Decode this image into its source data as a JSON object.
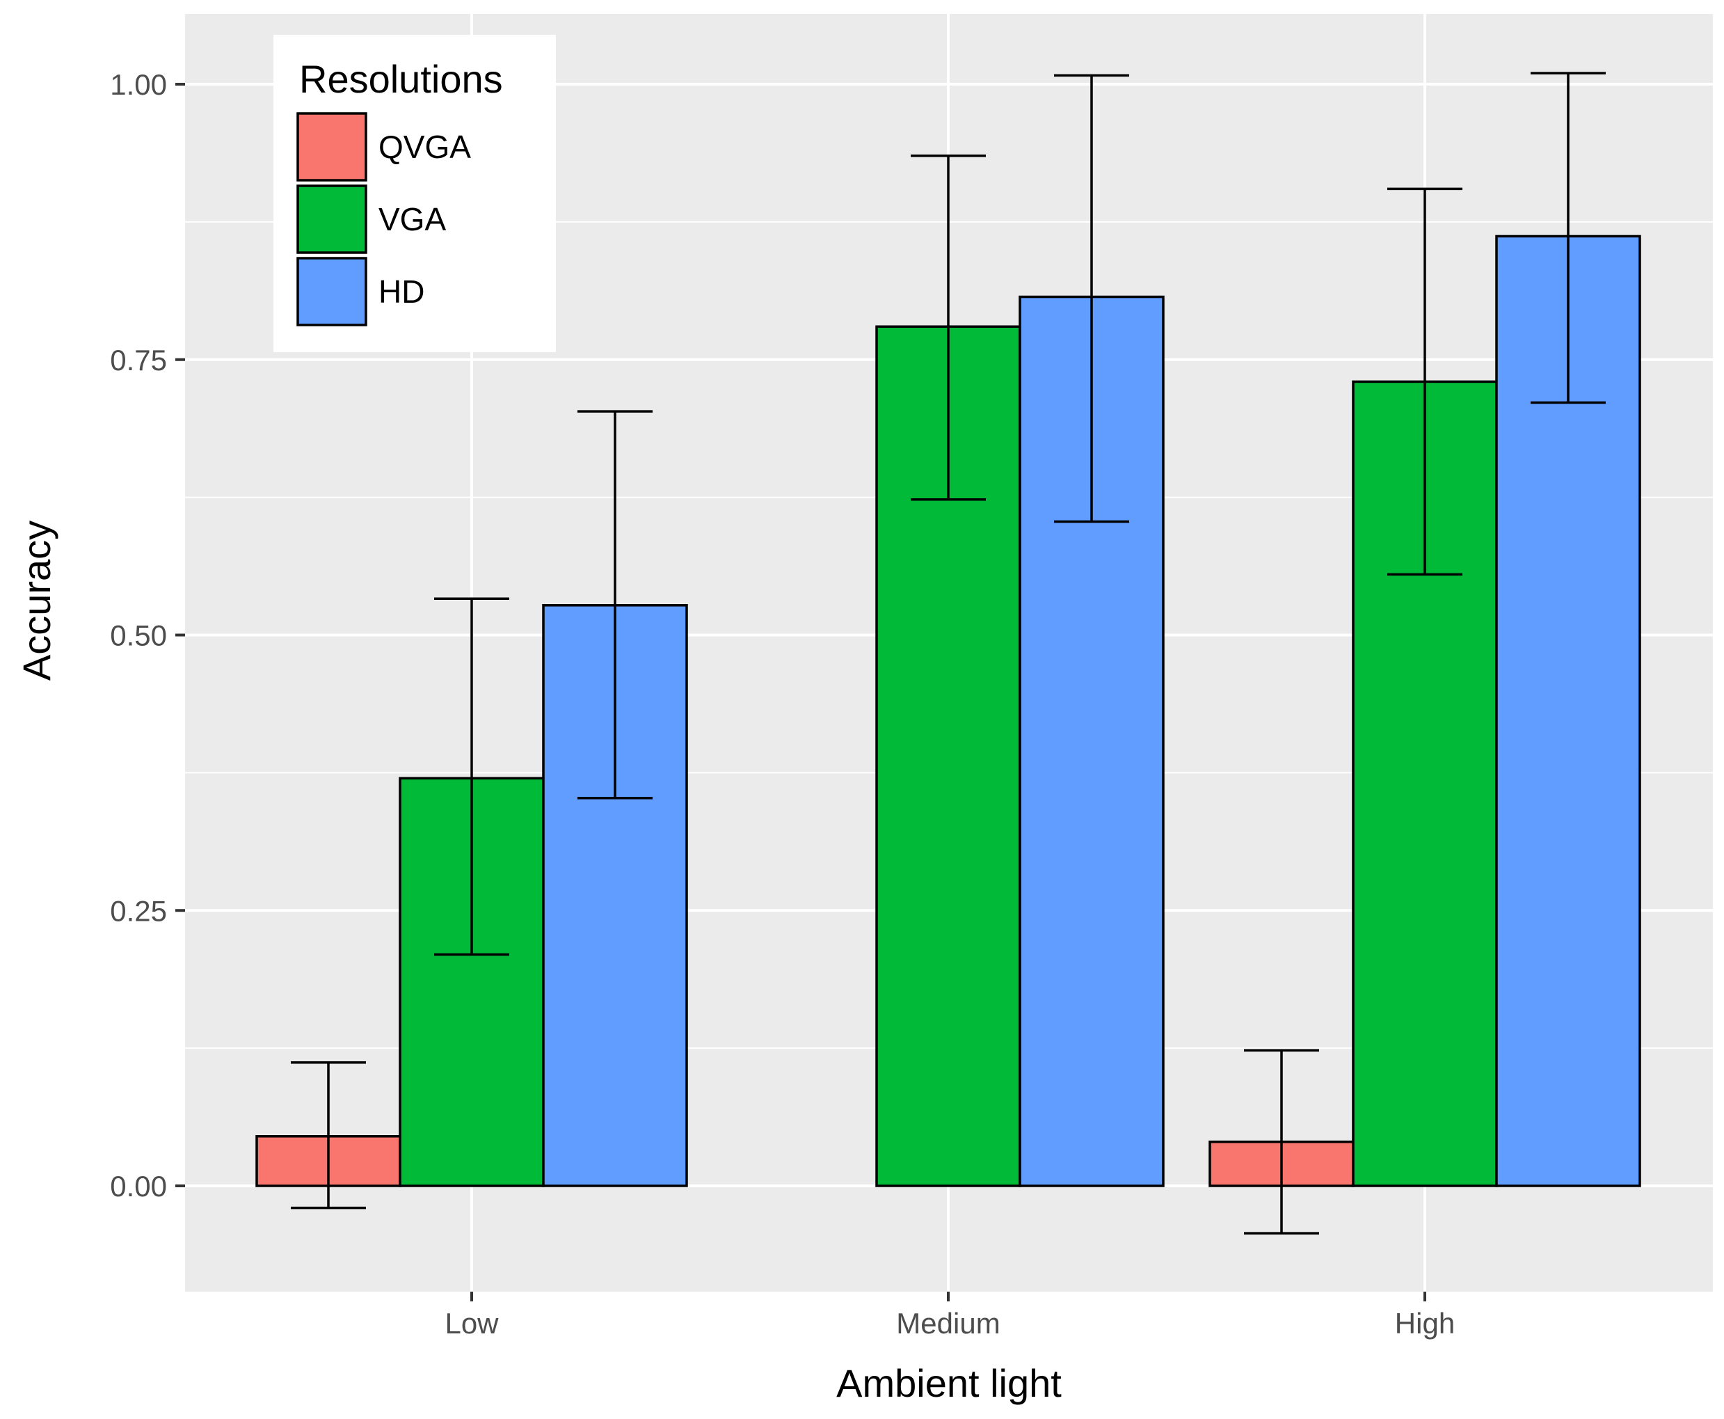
{
  "chart_data": {
    "type": "bar",
    "title": "",
    "xlabel": "Ambient light",
    "ylabel": "Accuracy",
    "categories": [
      "Low",
      "Medium",
      "High"
    ],
    "ylim": [
      -0.075,
      1.05
    ],
    "yticks": [
      0.0,
      0.25,
      0.5,
      0.75,
      1.0
    ],
    "ytick_labels": [
      "0.00",
      "0.25",
      "0.50",
      "0.75",
      "1.00"
    ],
    "grid": true,
    "legend": {
      "title": "Resolutions",
      "position": "top-left"
    },
    "series": [
      {
        "name": "QVGA",
        "color": "#F8766D",
        "values": [
          0.045,
          0.0,
          0.04
        ],
        "err_low": [
          -0.02,
          null,
          -0.043
        ],
        "err_high": [
          0.112,
          null,
          0.123
        ]
      },
      {
        "name": "VGA",
        "color": "#00BA38",
        "values": [
          0.37,
          0.78,
          0.73
        ],
        "err_low": [
          0.21,
          0.623,
          0.555
        ],
        "err_high": [
          0.533,
          0.935,
          0.905
        ]
      },
      {
        "name": "HD",
        "color": "#619CFF",
        "values": [
          0.527,
          0.807,
          0.862
        ],
        "err_low": [
          0.352,
          0.603,
          0.711
        ],
        "err_high": [
          0.703,
          1.008,
          1.01
        ]
      }
    ]
  }
}
